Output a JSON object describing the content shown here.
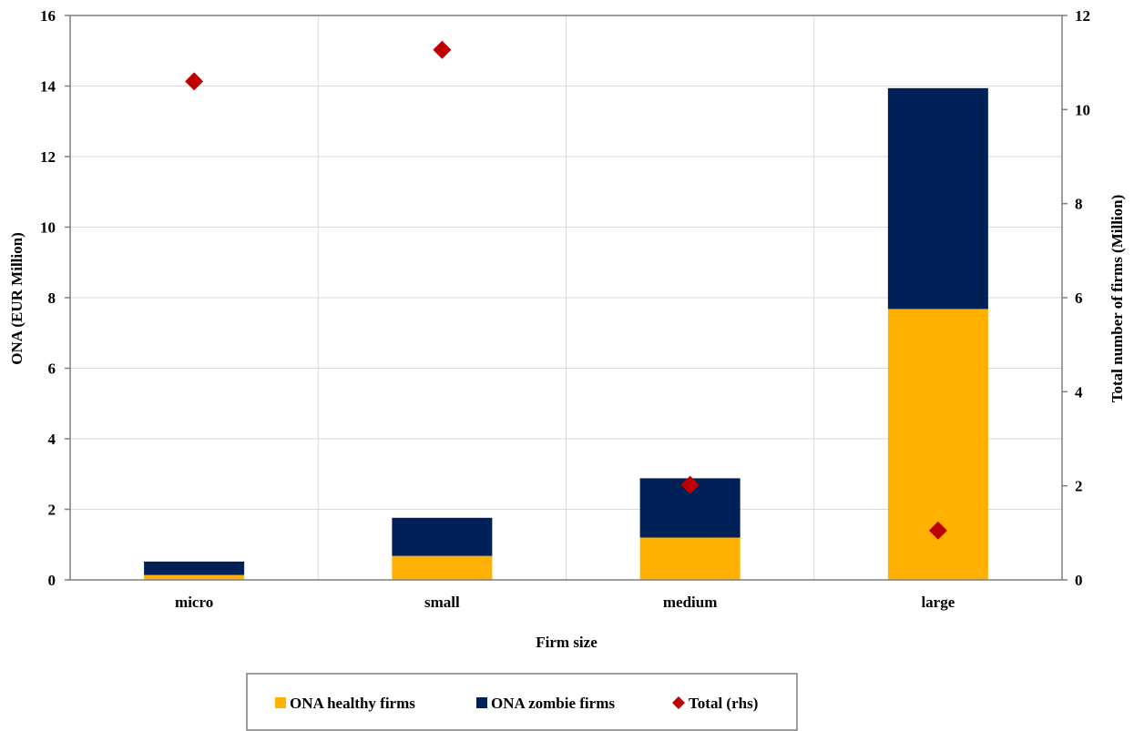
{
  "chart_data": {
    "type": "bar",
    "stacked": true,
    "title": "",
    "xlabel": "Firm size",
    "ylabel": "ONA (EUR Million)",
    "y2label": "Total number of firms (Million)",
    "categories": [
      "micro",
      "small",
      "medium",
      "large"
    ],
    "ylim": [
      0,
      16
    ],
    "y2lim": [
      0,
      12
    ],
    "yticks": [
      0,
      2,
      4,
      6,
      8,
      10,
      12,
      14,
      16
    ],
    "y2ticks": [
      0,
      2,
      4,
      6,
      8,
      10,
      12
    ],
    "grid": true,
    "legend_position": "bottom",
    "series": [
      {
        "name": "ONA healthy firms",
        "type": "bar",
        "axis": "left",
        "color": "#FFB000",
        "values": [
          0.14,
          0.68,
          1.2,
          7.68
        ]
      },
      {
        "name": "ONA zombie firms",
        "type": "bar",
        "axis": "left",
        "color": "#002157",
        "values": [
          0.38,
          1.08,
          1.68,
          6.26
        ]
      },
      {
        "name": "Total (rhs)",
        "type": "scatter",
        "marker": "diamond",
        "axis": "right",
        "color": "#C00000",
        "values": [
          10.6,
          11.27,
          2.02,
          1.05
        ]
      }
    ]
  }
}
